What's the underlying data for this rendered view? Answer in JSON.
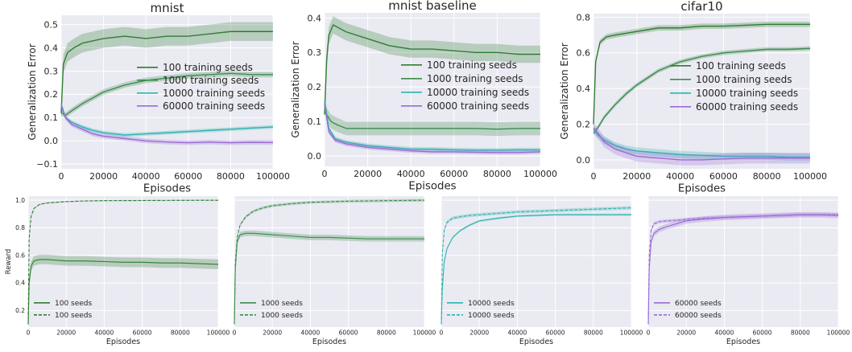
{
  "figure": {
    "colors": {
      "s100": "#2f7d32",
      "s1000": "#3c8c4f",
      "s10000": "#2bb5ae",
      "s60000": "#9b6bd6",
      "panel_bg": "#eaeaf2",
      "grid": "#ffffff"
    }
  },
  "chart_data": [
    {
      "type": "line",
      "title": "mnist",
      "xlabel": "Episodes",
      "ylabel": "Generalization Error",
      "xlim": [
        0,
        100000
      ],
      "ylim": [
        -0.12,
        0.54
      ],
      "xticks": [
        0,
        20000,
        40000,
        60000,
        80000,
        100000
      ],
      "xtick_labels": [
        "0",
        "20000",
        "40000",
        "60000",
        "80000",
        "100000"
      ],
      "yticks": [
        -0.1,
        0.0,
        0.1,
        0.2,
        0.3,
        0.4,
        0.5
      ],
      "ytick_labels": [
        "−0.1",
        "0.0",
        "0.1",
        "0.2",
        "0.3",
        "0.4",
        "0.5"
      ],
      "grid": true,
      "legend_position": "center-right",
      "series": [
        {
          "name": "100 training seeds",
          "color_key": "s100",
          "x": [
            0,
            1000,
            3000,
            6000,
            10000,
            15000,
            20000,
            30000,
            40000,
            50000,
            60000,
            70000,
            80000,
            90000,
            100000
          ],
          "y": [
            0.12,
            0.33,
            0.38,
            0.4,
            0.42,
            0.43,
            0.44,
            0.45,
            0.44,
            0.45,
            0.45,
            0.46,
            0.47,
            0.47,
            0.47
          ],
          "band": 0.04
        },
        {
          "name": "1000 training seeds",
          "color_key": "s1000",
          "x": [
            0,
            2000,
            5000,
            10000,
            20000,
            30000,
            40000,
            50000,
            60000,
            70000,
            80000,
            90000,
            100000
          ],
          "y": [
            0.12,
            0.11,
            0.13,
            0.16,
            0.21,
            0.24,
            0.26,
            0.27,
            0.28,
            0.285,
            0.29,
            0.285,
            0.285
          ],
          "band": 0.012
        },
        {
          "name": "10000 training seeds",
          "color_key": "s10000",
          "x": [
            0,
            2000,
            5000,
            10000,
            15000,
            20000,
            30000,
            40000,
            50000,
            60000,
            70000,
            80000,
            90000,
            100000
          ],
          "y": [
            0.16,
            0.1,
            0.08,
            0.06,
            0.045,
            0.035,
            0.025,
            0.03,
            0.035,
            0.04,
            0.045,
            0.05,
            0.055,
            0.06
          ],
          "band": 0.008
        },
        {
          "name": "60000 training seeds",
          "color_key": "s60000",
          "x": [
            0,
            2000,
            5000,
            10000,
            15000,
            20000,
            30000,
            40000,
            50000,
            60000,
            70000,
            80000,
            90000,
            100000
          ],
          "y": [
            0.15,
            0.1,
            0.07,
            0.05,
            0.03,
            0.02,
            0.01,
            0.0,
            -0.005,
            -0.008,
            -0.005,
            -0.008,
            -0.006,
            -0.007
          ],
          "band": 0.01
        }
      ]
    },
    {
      "type": "line",
      "title": "mnist baseline",
      "xlabel": "Episodes",
      "ylabel": "Generalization Error",
      "xlim": [
        0,
        100000
      ],
      "ylim": [
        -0.03,
        0.415
      ],
      "xticks": [
        0,
        20000,
        40000,
        60000,
        80000,
        100000
      ],
      "xtick_labels": [
        "0",
        "20000",
        "40000",
        "60000",
        "80000",
        "100000"
      ],
      "yticks": [
        0.0,
        0.1,
        0.2,
        0.3,
        0.4
      ],
      "ytick_labels": [
        "0.0",
        "0.1",
        "0.2",
        "0.3",
        "0.4"
      ],
      "grid": true,
      "legend_position": "center-right",
      "series": [
        {
          "name": "100 training seeds",
          "color_key": "s100",
          "x": [
            0,
            1000,
            2000,
            4000,
            7000,
            10000,
            15000,
            20000,
            30000,
            40000,
            50000,
            60000,
            70000,
            80000,
            90000,
            100000
          ],
          "y": [
            0.12,
            0.28,
            0.35,
            0.38,
            0.37,
            0.36,
            0.35,
            0.34,
            0.32,
            0.31,
            0.31,
            0.305,
            0.3,
            0.3,
            0.295,
            0.295
          ],
          "band": 0.025
        },
        {
          "name": "1000 training seeds",
          "color_key": "s1000",
          "x": [
            0,
            1000,
            3000,
            6000,
            10000,
            20000,
            30000,
            40000,
            50000,
            60000,
            70000,
            80000,
            90000,
            100000
          ],
          "y": [
            0.16,
            0.12,
            0.1,
            0.09,
            0.08,
            0.08,
            0.08,
            0.08,
            0.08,
            0.08,
            0.08,
            0.078,
            0.08,
            0.08
          ],
          "band": 0.02
        },
        {
          "name": "10000 training seeds",
          "color_key": "s10000",
          "x": [
            0,
            2000,
            5000,
            10000,
            20000,
            30000,
            40000,
            50000,
            60000,
            70000,
            80000,
            90000,
            100000
          ],
          "y": [
            0.16,
            0.08,
            0.05,
            0.04,
            0.03,
            0.025,
            0.02,
            0.02,
            0.018,
            0.017,
            0.017,
            0.018,
            0.018
          ],
          "band": 0.006
        },
        {
          "name": "60000 training seeds",
          "color_key": "s60000",
          "x": [
            0,
            2000,
            5000,
            10000,
            20000,
            30000,
            40000,
            50000,
            60000,
            70000,
            80000,
            90000,
            100000
          ],
          "y": [
            0.15,
            0.07,
            0.045,
            0.035,
            0.025,
            0.02,
            0.015,
            0.012,
            0.012,
            0.011,
            0.01,
            0.01,
            0.012
          ],
          "band": 0.006
        }
      ]
    },
    {
      "type": "line",
      "title": "cifar10",
      "xlabel": "Episodes",
      "ylabel": "Generalization Error",
      "xlim": [
        0,
        100000
      ],
      "ylim": [
        -0.05,
        0.82
      ],
      "xticks": [
        0,
        20000,
        40000,
        60000,
        80000,
        100000
      ],
      "xtick_labels": [
        "0",
        "20000",
        "40000",
        "60000",
        "80000",
        "100000"
      ],
      "yticks": [
        0.0,
        0.2,
        0.4,
        0.6,
        0.8
      ],
      "ytick_labels": [
        "0.0",
        "0.2",
        "0.4",
        "0.6",
        "0.8"
      ],
      "grid": true,
      "legend_position": "center-right",
      "series": [
        {
          "name": "100 training seeds",
          "color_key": "s100",
          "x": [
            0,
            1000,
            3000,
            6000,
            10000,
            15000,
            20000,
            30000,
            40000,
            50000,
            60000,
            70000,
            80000,
            90000,
            100000
          ],
          "y": [
            0.2,
            0.55,
            0.66,
            0.69,
            0.7,
            0.71,
            0.72,
            0.74,
            0.74,
            0.75,
            0.75,
            0.755,
            0.76,
            0.76,
            0.76
          ],
          "band": 0.015
        },
        {
          "name": "1000 training seeds",
          "color_key": "s1000",
          "x": [
            0,
            2000,
            5000,
            10000,
            15000,
            20000,
            25000,
            30000,
            40000,
            50000,
            60000,
            70000,
            80000,
            90000,
            100000
          ],
          "y": [
            0.15,
            0.18,
            0.24,
            0.31,
            0.37,
            0.42,
            0.46,
            0.5,
            0.55,
            0.58,
            0.6,
            0.61,
            0.62,
            0.62,
            0.625
          ],
          "band": 0.012
        },
        {
          "name": "10000 training seeds",
          "color_key": "s10000",
          "x": [
            0,
            2000,
            5000,
            10000,
            15000,
            20000,
            30000,
            40000,
            50000,
            60000,
            70000,
            80000,
            90000,
            100000
          ],
          "y": [
            0.17,
            0.14,
            0.11,
            0.08,
            0.06,
            0.05,
            0.04,
            0.03,
            0.025,
            0.02,
            0.02,
            0.02,
            0.015,
            0.015
          ],
          "band": 0.02
        },
        {
          "name": "60000 training seeds",
          "color_key": "s60000",
          "x": [
            0,
            2000,
            5000,
            10000,
            15000,
            20000,
            30000,
            40000,
            50000,
            60000,
            70000,
            80000,
            90000,
            100000
          ],
          "y": [
            0.18,
            0.15,
            0.1,
            0.06,
            0.04,
            0.02,
            0.01,
            0.0,
            0.0,
            0.005,
            0.01,
            0.01,
            0.01,
            0.01
          ],
          "band": 0.03
        }
      ]
    },
    {
      "type": "line",
      "title": "",
      "xlabel": "Episodes",
      "ylabel": "Reward",
      "xlim": [
        0,
        100000
      ],
      "ylim": [
        0.08,
        1.03
      ],
      "xticks": [
        0,
        20000,
        40000,
        60000,
        80000,
        100000
      ],
      "xtick_labels": [
        "0",
        "20000",
        "40000",
        "60000",
        "80000",
        "100000"
      ],
      "yticks": [
        0.2,
        0.4,
        0.6,
        0.8,
        1.0
      ],
      "ytick_labels": [
        "0.2",
        "0.4",
        "0.6",
        "0.8",
        "1.0"
      ],
      "grid": true,
      "legend_position": "bottom-left",
      "series": [
        {
          "name": "100 seeds",
          "color_key": "s100",
          "dashed": false,
          "x": [
            0,
            500,
            1500,
            3000,
            6000,
            10000,
            20000,
            30000,
            40000,
            50000,
            60000,
            70000,
            80000,
            90000,
            100000
          ],
          "y": [
            0.1,
            0.4,
            0.52,
            0.56,
            0.57,
            0.57,
            0.56,
            0.56,
            0.555,
            0.55,
            0.55,
            0.545,
            0.545,
            0.54,
            0.535
          ],
          "band": 0.035
        },
        {
          "name": "100 seeds",
          "color_key": "s100",
          "dashed": true,
          "x": [
            0,
            500,
            1500,
            3000,
            6000,
            10000,
            20000,
            30000,
            40000,
            60000,
            80000,
            100000
          ],
          "y": [
            0.1,
            0.72,
            0.88,
            0.94,
            0.97,
            0.98,
            0.99,
            0.995,
            0.997,
            0.998,
            0.999,
            1.0
          ],
          "band": 0.004
        }
      ]
    },
    {
      "type": "line",
      "title": "",
      "xlabel": "Episodes",
      "ylabel": "",
      "xlim": [
        0,
        100000
      ],
      "ylim": [
        0.08,
        1.03
      ],
      "xticks": [
        0,
        20000,
        40000,
        60000,
        80000,
        100000
      ],
      "xtick_labels": [
        "0",
        "20000",
        "40000",
        "60000",
        "80000",
        "100000"
      ],
      "yticks": [
        0.2,
        0.4,
        0.6,
        0.8,
        1.0
      ],
      "ytick_labels": [],
      "grid": true,
      "legend_position": "bottom-left",
      "series": [
        {
          "name": "1000 seeds",
          "color_key": "s1000",
          "dashed": false,
          "x": [
            0,
            500,
            1500,
            3000,
            6000,
            10000,
            15000,
            20000,
            30000,
            40000,
            50000,
            60000,
            70000,
            80000,
            90000,
            100000
          ],
          "y": [
            0.1,
            0.5,
            0.7,
            0.75,
            0.76,
            0.76,
            0.755,
            0.75,
            0.74,
            0.73,
            0.73,
            0.725,
            0.72,
            0.72,
            0.72,
            0.72
          ],
          "band": 0.02
        },
        {
          "name": "1000 seeds",
          "color_key": "s1000",
          "dashed": true,
          "x": [
            0,
            500,
            1500,
            3000,
            6000,
            10000,
            15000,
            20000,
            30000,
            40000,
            60000,
            80000,
            100000
          ],
          "y": [
            0.1,
            0.55,
            0.73,
            0.82,
            0.88,
            0.92,
            0.945,
            0.96,
            0.975,
            0.985,
            0.993,
            0.997,
            1.0
          ],
          "band": 0.01
        }
      ]
    },
    {
      "type": "line",
      "title": "",
      "xlabel": "Episodes",
      "ylabel": "",
      "xlim": [
        0,
        100000
      ],
      "ylim": [
        0.08,
        1.03
      ],
      "xticks": [
        0,
        20000,
        40000,
        60000,
        80000,
        100000
      ],
      "xtick_labels": [
        "0",
        "20000",
        "40000",
        "60000",
        "80000",
        "100000"
      ],
      "yticks": [
        0.2,
        0.4,
        0.6,
        0.8,
        1.0
      ],
      "ytick_labels": [],
      "grid": true,
      "legend_position": "bottom-left",
      "series": [
        {
          "name": "10000 seeds",
          "color_key": "s10000",
          "dashed": false,
          "x": [
            0,
            500,
            1500,
            3000,
            6000,
            10000,
            15000,
            20000,
            30000,
            40000,
            50000,
            60000,
            70000,
            80000,
            90000,
            100000
          ],
          "y": [
            0.1,
            0.35,
            0.55,
            0.65,
            0.73,
            0.78,
            0.82,
            0.85,
            0.87,
            0.885,
            0.89,
            0.895,
            0.895,
            0.895,
            0.895,
            0.895
          ],
          "band": 0.008
        },
        {
          "name": "10000 seeds",
          "color_key": "s10000",
          "dashed": true,
          "x": [
            0,
            500,
            1500,
            3000,
            6000,
            10000,
            15000,
            20000,
            30000,
            40000,
            50000,
            60000,
            70000,
            80000,
            90000,
            100000
          ],
          "y": [
            0.1,
            0.6,
            0.78,
            0.84,
            0.87,
            0.88,
            0.89,
            0.895,
            0.905,
            0.915,
            0.92,
            0.925,
            0.93,
            0.935,
            0.94,
            0.945
          ],
          "band": 0.012
        }
      ]
    },
    {
      "type": "line",
      "title": "",
      "xlabel": "Episodes",
      "ylabel": "",
      "xlim": [
        0,
        100000
      ],
      "ylim": [
        0.08,
        1.03
      ],
      "xticks": [
        0,
        20000,
        40000,
        60000,
        80000,
        100000
      ],
      "xtick_labels": [
        "0",
        "20000",
        "40000",
        "60000",
        "80000",
        "100000"
      ],
      "yticks": [
        0.2,
        0.4,
        0.6,
        0.8,
        1.0
      ],
      "ytick_labels": [],
      "grid": true,
      "legend_position": "bottom-left",
      "series": [
        {
          "name": "60000 seeds",
          "color_key": "s60000",
          "dashed": false,
          "x": [
            0,
            500,
            1500,
            3000,
            6000,
            10000,
            15000,
            20000,
            30000,
            40000,
            50000,
            60000,
            70000,
            80000,
            90000,
            100000
          ],
          "y": [
            0.1,
            0.5,
            0.7,
            0.76,
            0.79,
            0.81,
            0.83,
            0.85,
            0.865,
            0.875,
            0.88,
            0.885,
            0.89,
            0.895,
            0.895,
            0.89
          ],
          "band": 0.02
        },
        {
          "name": "60000 seeds",
          "color_key": "s60000",
          "dashed": true,
          "x": [
            0,
            500,
            1500,
            3000,
            6000,
            10000,
            15000,
            20000,
            30000,
            40000,
            50000,
            60000,
            70000,
            80000,
            90000,
            100000
          ],
          "y": [
            0.1,
            0.6,
            0.78,
            0.83,
            0.845,
            0.85,
            0.855,
            0.86,
            0.87,
            0.875,
            0.88,
            0.885,
            0.89,
            0.895,
            0.895,
            0.895
          ],
          "band": 0.012
        }
      ]
    }
  ]
}
